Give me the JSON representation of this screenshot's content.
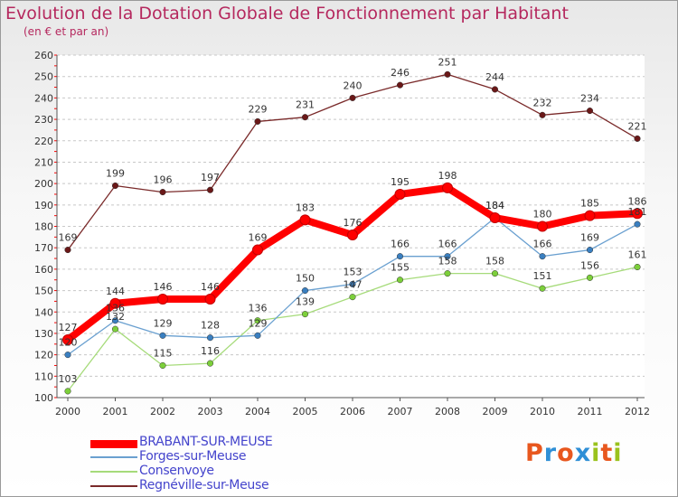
{
  "header": {
    "title": "Evolution de la Dotation Globale de Fonctionnement par Habitant",
    "subtitle": "(en € et par an)"
  },
  "logo": {
    "text": "Proxiti",
    "colors": [
      "#e8571e",
      "#2f8fd6",
      "#e8571e",
      "#2f8fd6",
      "#9ac21d",
      "#e8571e",
      "#9ac21d"
    ]
  },
  "chart_data": {
    "type": "line",
    "title": "Evolution de la Dotation Globale de Fonctionnement par Habitant",
    "subtitle": "(en € et par an)",
    "x": [
      2000,
      2001,
      2002,
      2003,
      2004,
      2005,
      2006,
      2007,
      2008,
      2009,
      2010,
      2011,
      2012
    ],
    "ylim": [
      100,
      260
    ],
    "yticks": [
      100,
      110,
      120,
      130,
      140,
      150,
      160,
      170,
      180,
      190,
      200,
      210,
      220,
      230,
      240,
      250,
      260
    ],
    "grid": "horizontal-dashed",
    "legend_position": "bottom-left",
    "series": [
      {
        "name": "BRABANT-SUR-MEUSE",
        "color": "#ff0000",
        "emphasis": true,
        "values": [
          127,
          144,
          146,
          146,
          169,
          183,
          176,
          195,
          198,
          184,
          180,
          185,
          186
        ]
      },
      {
        "name": "Forges-sur-Meuse",
        "color": "#6aa0d0",
        "point_color": "#3a7fc0",
        "values": [
          120,
          136,
          129,
          128,
          129,
          150,
          153,
          166,
          166,
          184,
          166,
          169,
          181
        ]
      },
      {
        "name": "Consenvoye",
        "color": "#a6db7a",
        "point_color": "#7ccf3a",
        "values": [
          103,
          132,
          115,
          116,
          136,
          139,
          147,
          155,
          158,
          158,
          151,
          156,
          161
        ]
      },
      {
        "name": "Regnéville-sur-Meuse",
        "color": "#7a2a2a",
        "point_color": "#6a1818",
        "values": [
          169,
          199,
          196,
          197,
          229,
          231,
          240,
          246,
          251,
          244,
          232,
          234,
          221
        ]
      }
    ],
    "data_labels": [
      [
        "127",
        "144",
        "146",
        "146",
        "169",
        "183",
        "176",
        "195",
        "198",
        "184",
        "180",
        "185",
        "186"
      ],
      [
        "120",
        "136",
        "129",
        "128",
        "129",
        "150",
        "153",
        "166",
        "166",
        "184",
        "166",
        "169",
        "181"
      ],
      [
        "103",
        "132",
        "115",
        "116",
        "136",
        "139",
        "147",
        "155",
        "158",
        "158",
        "151",
        "156",
        "161"
      ],
      [
        "169",
        "199",
        "196",
        "197",
        "229",
        "231",
        "240",
        "246",
        "251",
        "244",
        "232",
        "234",
        "221"
      ]
    ]
  }
}
